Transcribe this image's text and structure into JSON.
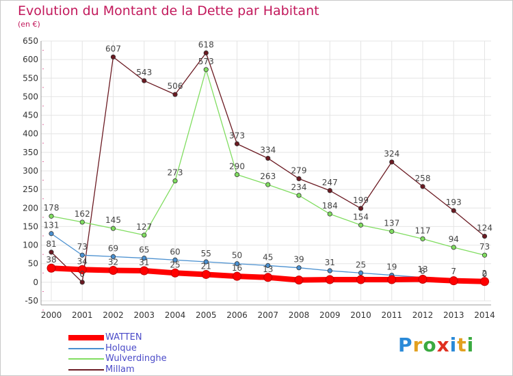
{
  "title": "Evolution du Montant de la Dette par Habitant",
  "unit": "(en €)",
  "logo_text": "Proxiti",
  "chart_data": {
    "type": "line",
    "title": "Evolution du Montant de la Dette par Habitant",
    "ylabel": "(en €)",
    "xlabel": "",
    "ylim": [
      -50,
      650
    ],
    "yticks": [
      "-50",
      "0",
      "50",
      "100",
      "150",
      "200",
      "250",
      "300",
      "350",
      "400",
      "450",
      "500",
      "550",
      "600",
      "650"
    ],
    "x": [
      "2000",
      "2001",
      "2002",
      "2003",
      "2004",
      "2005",
      "2006",
      "2007",
      "2008",
      "2009",
      "2010",
      "2011",
      "2012",
      "2013",
      "2014"
    ],
    "grid": true,
    "legend": "bottom-left",
    "series": [
      {
        "name": "WATTEN",
        "color": "#ff0000",
        "values": [
          38,
          34,
          32,
          31,
          25,
          21,
          16,
          13,
          6,
          7,
          7,
          7,
          8,
          4,
          2
        ],
        "labels": [
          "38",
          "34",
          "32",
          "31",
          "25",
          "21",
          "16",
          "13",
          "",
          "",
          "",
          "",
          "8",
          "",
          "2"
        ]
      },
      {
        "name": "Holque",
        "color": "#4a90d0",
        "values": [
          131,
          73,
          69,
          65,
          60,
          55,
          50,
          45,
          39,
          31,
          25,
          19,
          13,
          7,
          0
        ],
        "labels": [
          "131",
          "73",
          "69",
          "65",
          "60",
          "55",
          "50",
          "45",
          "39",
          "31",
          "25",
          "19",
          "13",
          "7",
          "0"
        ]
      },
      {
        "name": "Wulverdinghe",
        "color": "#80dd60",
        "values": [
          178,
          162,
          145,
          127,
          273,
          573,
          290,
          263,
          234,
          184,
          154,
          137,
          117,
          94,
          73
        ],
        "labels": [
          "178",
          "162",
          "145",
          "127",
          "273",
          "573",
          "290",
          "263",
          "234",
          "184",
          "154",
          "137",
          "117",
          "94",
          "73"
        ]
      },
      {
        "name": "Millam",
        "color": "#6b1a22",
        "values": [
          81,
          0,
          607,
          543,
          506,
          618,
          373,
          334,
          279,
          247,
          199,
          324,
          258,
          193,
          124
        ],
        "labels": [
          "81",
          "0",
          "607",
          "543",
          "506",
          "618",
          "373",
          "334",
          "279",
          "247",
          "199",
          "324",
          "258",
          "193",
          "124"
        ]
      }
    ]
  }
}
